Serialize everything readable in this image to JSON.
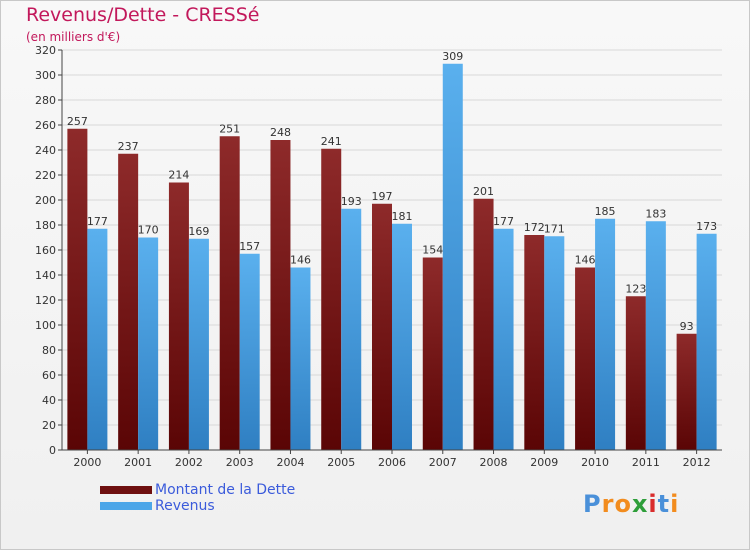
{
  "title": "Revenus/Dette - CRESSé",
  "subtitle": "(en milliers d'€)",
  "colors": {
    "dette": "#8b1a1a",
    "revenus": "#4da6e8"
  },
  "legend": [
    {
      "label": "Montant de la Dette",
      "color": "#6e0f0f"
    },
    {
      "label": "Revenus",
      "color": "#4da6e8"
    }
  ],
  "logo": {
    "text": "Proxiti",
    "letters": [
      "P",
      "r",
      "o",
      "x",
      "i",
      "t",
      "i"
    ],
    "letter_colors": [
      "#4a90d9",
      "#f28c1e",
      "#f28c1e",
      "#2e9e3a",
      "#d92c2c",
      "#4a90d9",
      "#f28c1e"
    ]
  },
  "chart_data": {
    "type": "bar",
    "categories": [
      "2000",
      "2001",
      "2002",
      "2003",
      "2004",
      "2005",
      "2006",
      "2007",
      "2008",
      "2009",
      "2010",
      "2011",
      "2012"
    ],
    "series": [
      {
        "name": "Montant de la Dette",
        "values": [
          257,
          237,
          214,
          251,
          248,
          241,
          197,
          154,
          201,
          172,
          146,
          123,
          93
        ]
      },
      {
        "name": "Revenus",
        "values": [
          177,
          170,
          169,
          157,
          146,
          193,
          181,
          309,
          177,
          171,
          185,
          183,
          173
        ]
      }
    ],
    "ylim": [
      0,
      320
    ],
    "ytick_step": 20,
    "grid": true,
    "legend_position": "bottom-left"
  }
}
